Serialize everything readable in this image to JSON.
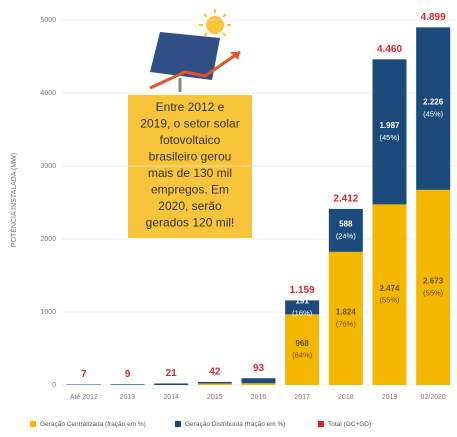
{
  "chart_data": {
    "type": "stacked_bar",
    "ylabel": "POTÊNCIA INSTALADA (MW)",
    "annotation": [
      "Entre 2012 e",
      "2019, o setor solar",
      "fotovoltaico",
      "brasileiro gerou",
      "mais de 130 mil",
      "empregos. Em",
      "2020, serão",
      "gerados 120 mil!"
    ],
    "categories": [
      "Até 2012",
      "2013",
      "2014",
      "2015",
      "2016",
      "2017",
      "2018",
      "2019",
      "02/2020"
    ],
    "ylim": [
      0,
      5000
    ],
    "yticks": [
      0,
      1000,
      2000,
      3000,
      4000,
      5000
    ],
    "series": [
      {
        "name": "Geração Centralizada (fração em %)",
        "color": "#f5b800",
        "values": [
          0,
          0,
          0,
          21,
          24,
          968,
          1824,
          2474,
          2673
        ],
        "value_labels": [
          null,
          null,
          null,
          null,
          null,
          "968",
          "1.824",
          "2.474",
          "2.673"
        ],
        "percent_labels": [
          null,
          null,
          null,
          null,
          null,
          "(84%)",
          "(76%)",
          "(55%)",
          "(55%)"
        ]
      },
      {
        "name": "Geração Distribuída (fração em %)",
        "color": "#1c4a7a",
        "values": [
          7,
          9,
          21,
          21,
          69,
          191,
          588,
          1987,
          2226
        ],
        "value_labels": [
          null,
          null,
          null,
          null,
          null,
          "191",
          "588",
          "1.987",
          "2.226"
        ],
        "percent_labels": [
          null,
          null,
          null,
          null,
          null,
          "(16%)",
          "(24%)",
          "(45%)",
          "(45%)"
        ]
      }
    ],
    "totals": {
      "name": "Total (GC+GD)",
      "color": "#d9262c",
      "values": [
        7,
        9,
        21,
        42,
        93,
        1159,
        2412,
        4460,
        4899
      ],
      "value_labels": [
        "7",
        "9",
        "21",
        "42",
        "93",
        "1.159",
        "2.412",
        "4.460",
        "4.899"
      ]
    }
  }
}
